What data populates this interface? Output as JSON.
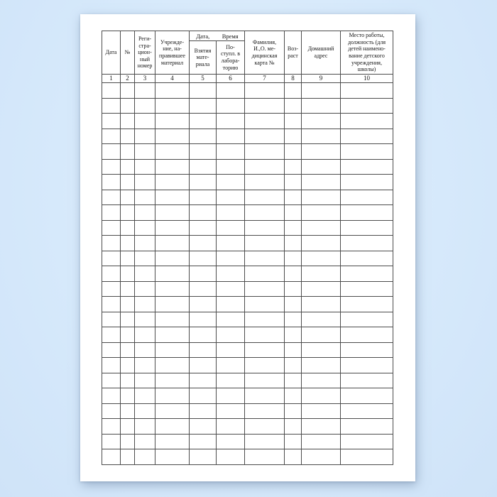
{
  "document": {
    "kind": "registration-journal-blank-form",
    "language": "ru"
  },
  "colors": {
    "background_blue": "#d6e9fb",
    "paper": "#ffffff",
    "grid_line": "#4c4c4c",
    "text": "#151515"
  },
  "table": {
    "datetime_group": {
      "left": "Дата,",
      "right": "Время"
    },
    "columns": [
      {
        "label": "Дата",
        "number": "1"
      },
      {
        "label": "№",
        "number": "2"
      },
      {
        "label": "Реги-\nстра-\nцион-\nный\nномер",
        "number": "3"
      },
      {
        "label": "Учрежде-\nние, на-\nправившее\nматериал",
        "number": "4"
      },
      {
        "label": "Взятия\nмате-\nриала",
        "number": "5"
      },
      {
        "label": "По-\nступл. в\nлабора-\nторию",
        "number": "6"
      },
      {
        "label": "Фамилия,\nИ.,О. ме-\nдицинская\nкарта №",
        "number": "7"
      },
      {
        "label": "Воз-\nраст",
        "number": "8"
      },
      {
        "label": "Домашний\nадрес",
        "number": "9"
      },
      {
        "label": "Место работы,\nдолжность (для\nдетей наимено-\nвание детского\nучреждения,\nшколы)",
        "number": "10"
      }
    ],
    "empty_row_count": 25
  }
}
